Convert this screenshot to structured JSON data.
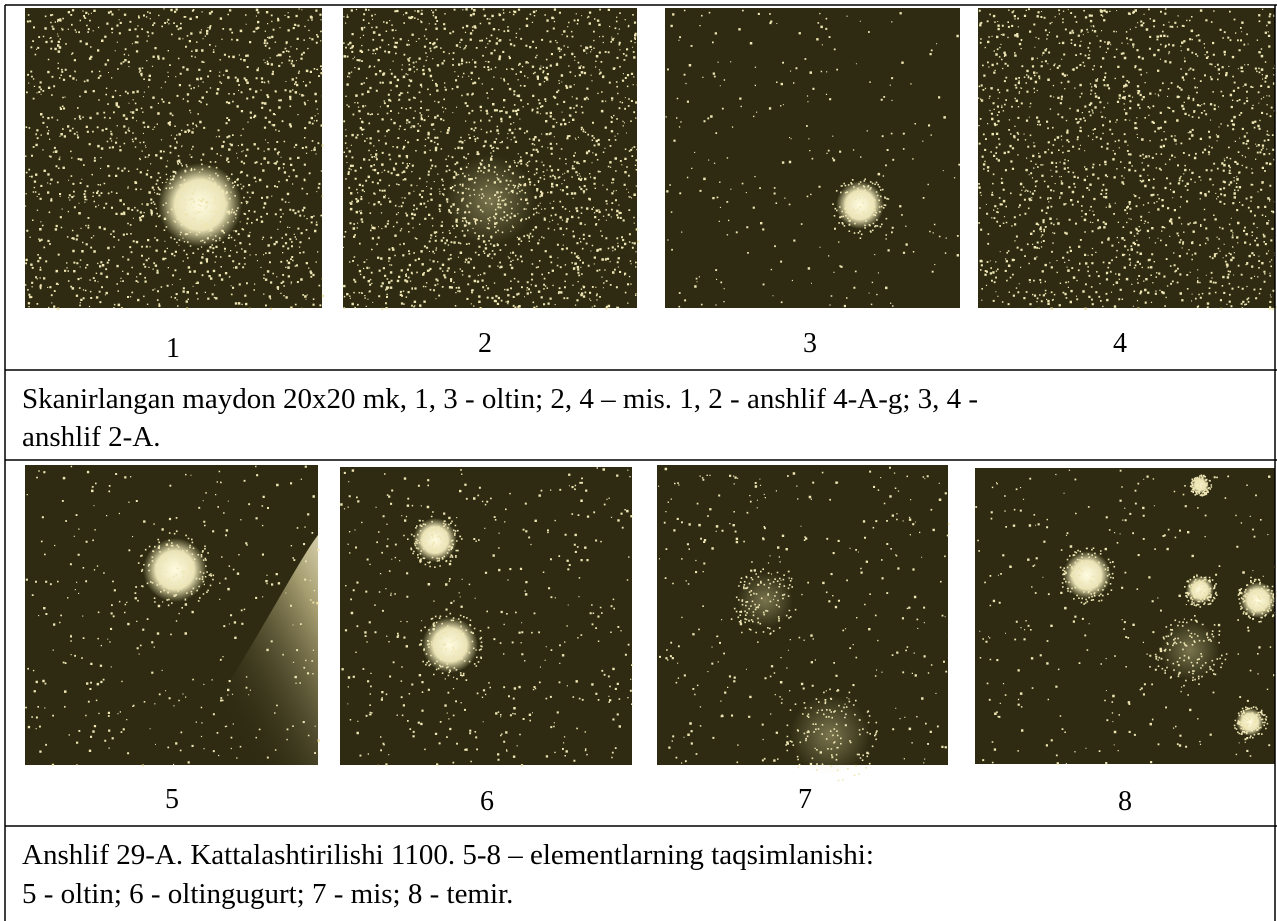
{
  "figure_1": {
    "labels": [
      "1",
      "2",
      "3",
      "4"
    ],
    "caption_lines": [
      "Skanirlangan maydon 20x20 mk, 1, 3 - oltin; 2, 4 – mis. 1, 2 - anshlif 4-A-g; 3, 4 -",
      "anshlif 2-A."
    ]
  },
  "figure_2": {
    "labels": [
      "5",
      "6",
      "7",
      "8"
    ],
    "caption_lines": [
      "Anshlif 29-A. Kattalashtirilishi 1100. 5-8 – elementlarning taqsimlanishi:",
      "5 - oltin; 6 - oltingugurt; 7 - mis; 8 - temir."
    ]
  }
}
